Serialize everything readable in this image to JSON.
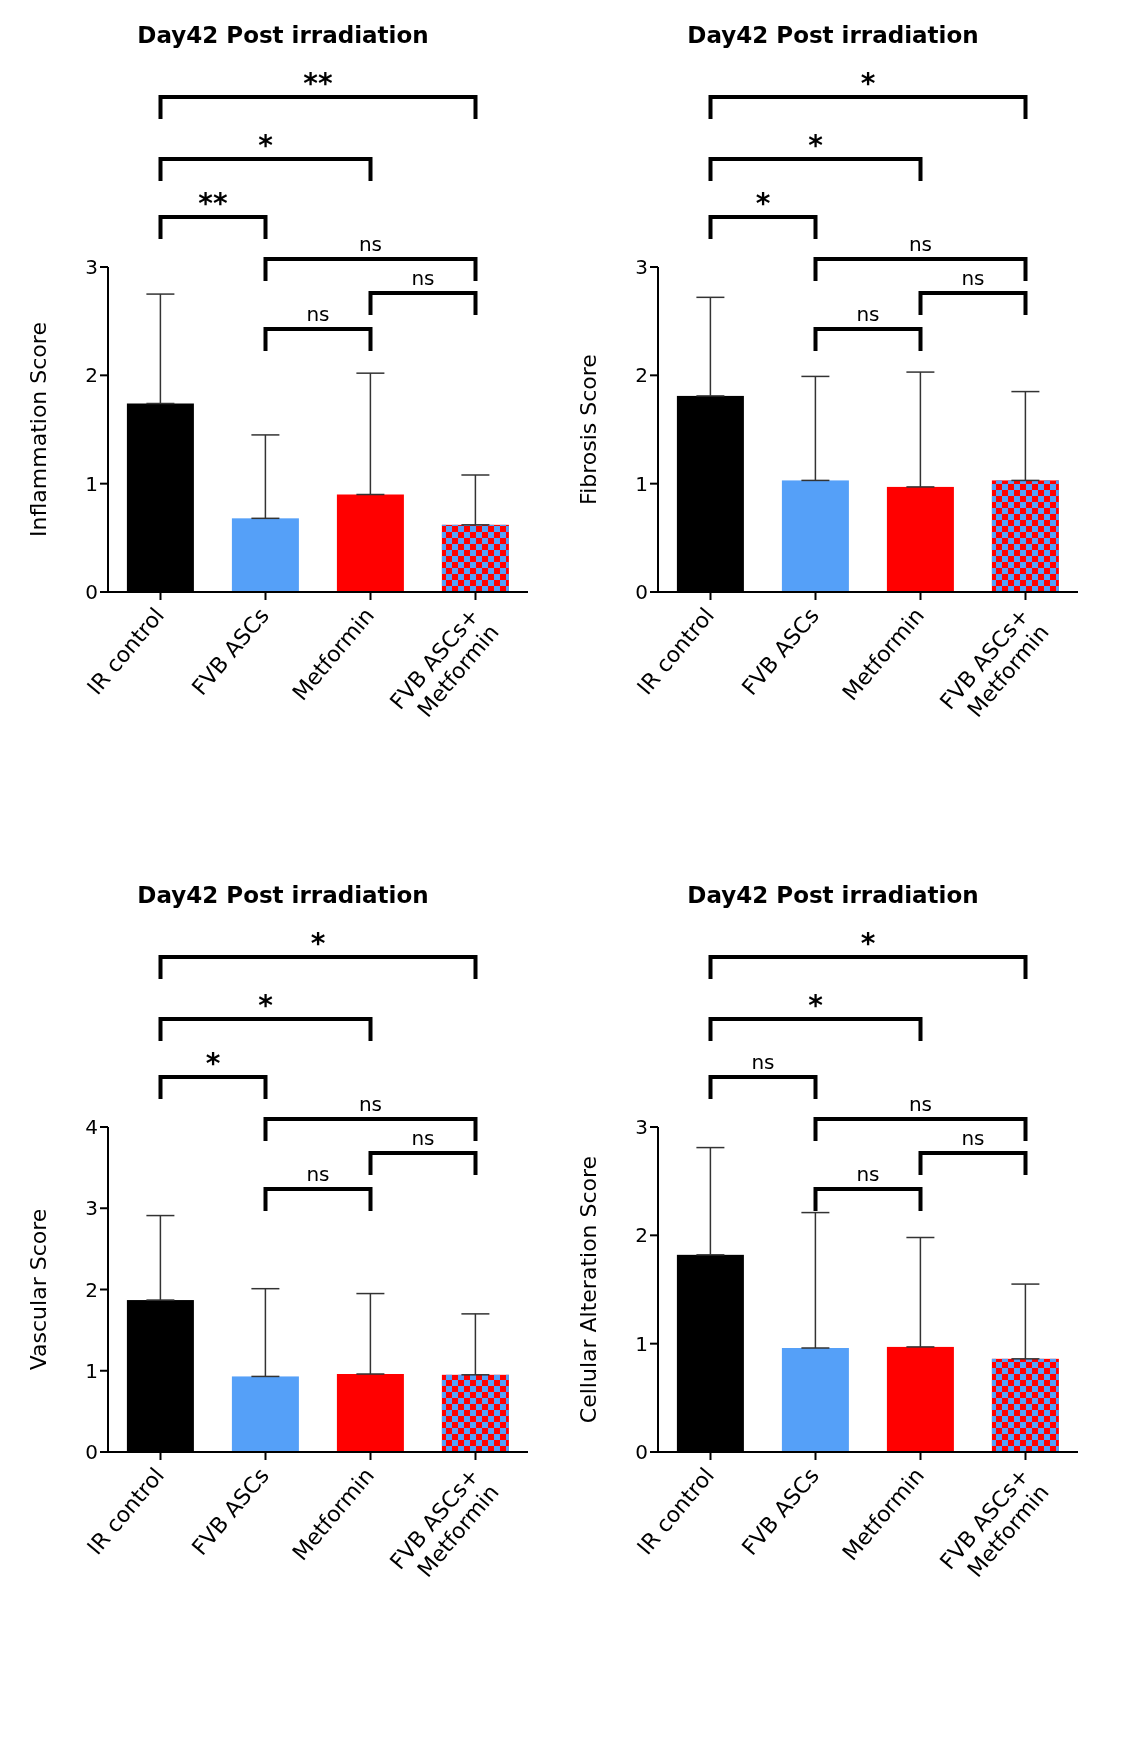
{
  "chart_data": [
    {
      "type": "bar",
      "title": "Day42 Post irradiation",
      "ylabel": "Inflammation Score",
      "categories": [
        "IR control",
        "FVB ASCs",
        "Metformin",
        "FVB ASCs+\nMetformin"
      ],
      "values": [
        1.74,
        0.68,
        0.9,
        0.62
      ],
      "errors": [
        [
          1.74,
          2.75
        ],
        [
          0.68,
          1.45
        ],
        [
          0.9,
          2.02
        ],
        [
          0.62,
          1.08
        ]
      ],
      "colors": [
        "#000000",
        "#55a0f8",
        "#ff0000",
        "#ff0000"
      ],
      "ylim": [
        0,
        3
      ],
      "yticks": [
        0,
        1,
        2,
        3
      ],
      "grid": false,
      "annotations": [
        "**",
        "*",
        "**",
        "ns",
        "ns",
        "ns"
      ]
    },
    {
      "type": "bar",
      "title": "Day42 Post irradiation",
      "ylabel": "Fibrosis Score",
      "categories": [
        "IR control",
        "FVB ASCs",
        "Metformin",
        "FVB ASCs+\nMetformin"
      ],
      "values": [
        1.81,
        1.03,
        0.97,
        1.03
      ],
      "errors": [
        [
          1.81,
          2.72
        ],
        [
          1.03,
          1.99
        ],
        [
          0.97,
          2.03
        ],
        [
          1.03,
          1.85
        ]
      ],
      "colors": [
        "#000000",
        "#55a0f8",
        "#ff0000",
        "#ff0000"
      ],
      "ylim": [
        0,
        3
      ],
      "yticks": [
        0,
        1,
        2,
        3
      ],
      "grid": false,
      "annotations": [
        "*",
        "*",
        "*",
        "ns",
        "ns",
        "ns"
      ]
    },
    {
      "type": "bar",
      "title": "Day42 Post irradiation",
      "ylabel": "Vascular Score",
      "categories": [
        "IR control",
        "FVB ASCs",
        "Metformin",
        "FVB ASCs+\nMetformin"
      ],
      "values": [
        1.87,
        0.93,
        0.96,
        0.95
      ],
      "errors": [
        [
          1.87,
          2.91
        ],
        [
          0.93,
          2.01
        ],
        [
          0.96,
          1.95
        ],
        [
          0.95,
          1.7
        ]
      ],
      "colors": [
        "#000000",
        "#55a0f8",
        "#ff0000",
        "#ff0000"
      ],
      "ylim": [
        0,
        4
      ],
      "yticks": [
        0,
        1,
        2,
        3,
        4
      ],
      "grid": false,
      "annotations": [
        "*",
        "*",
        "*",
        "ns",
        "ns",
        "ns"
      ]
    },
    {
      "type": "bar",
      "title": "Day42 Post irradiation",
      "ylabel": "Cellular Alteration Score",
      "categories": [
        "IR control",
        "FVB ASCs",
        "Metformin",
        "FVB ASCs+\nMetformin"
      ],
      "values": [
        1.82,
        0.96,
        0.97,
        0.86
      ],
      "errors": [
        [
          1.82,
          2.81
        ],
        [
          0.96,
          2.21
        ],
        [
          0.97,
          1.98
        ],
        [
          0.86,
          1.55
        ]
      ],
      "colors": [
        "#000000",
        "#55a0f8",
        "#ff0000",
        "#ff0000"
      ],
      "ylim": [
        0,
        3
      ],
      "yticks": [
        0,
        1,
        2,
        3
      ],
      "grid": false,
      "annotations": [
        "*",
        "*",
        "ns",
        "ns",
        "ns",
        "ns"
      ]
    }
  ]
}
